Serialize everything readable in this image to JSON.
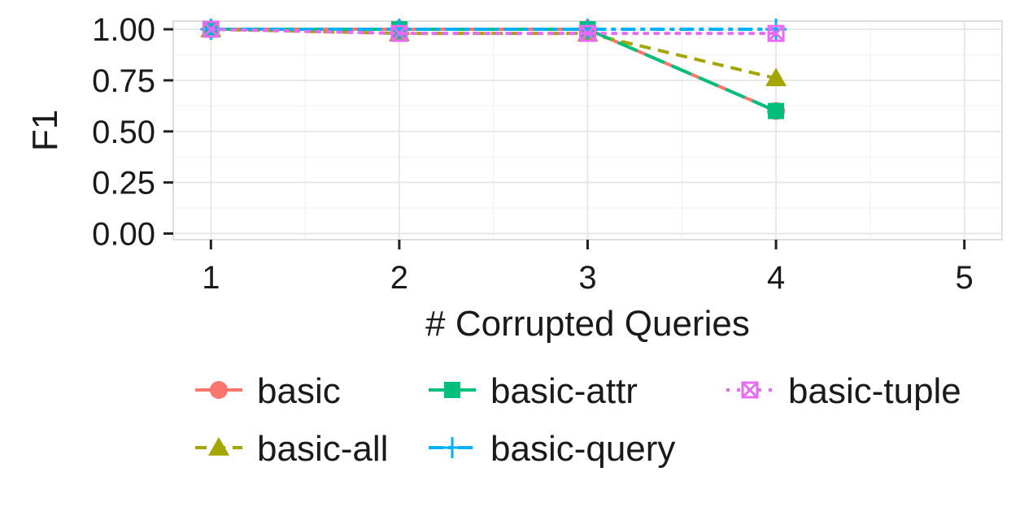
{
  "chart_data": {
    "type": "line",
    "title": "",
    "xlabel": "# Corrupted Queries",
    "ylabel": "F1",
    "x": [
      1,
      2,
      3,
      4
    ],
    "xticks": [
      "1",
      "2",
      "3",
      "4",
      "5"
    ],
    "yticks": [
      "0.00",
      "0.25",
      "0.50",
      "0.75",
      "1.00"
    ],
    "xlim": [
      0.8,
      5.2
    ],
    "ylim": [
      -0.03,
      1.04
    ],
    "grid": true,
    "legend_position": "bottom",
    "series": [
      {
        "name": "basic",
        "values": [
          1.0,
          1.0,
          1.0,
          0.6
        ],
        "color": "#F8766D",
        "dash": "solid",
        "marker": "circle"
      },
      {
        "name": "basic-all",
        "values": [
          1.0,
          0.98,
          0.98,
          0.76
        ],
        "color": "#A3A500",
        "dash": "dashed",
        "marker": "triangle"
      },
      {
        "name": "basic-attr",
        "values": [
          1.0,
          1.0,
          1.0,
          0.6
        ],
        "color": "#00BF7D",
        "dash": "longdash",
        "marker": "square"
      },
      {
        "name": "basic-query",
        "values": [
          1.0,
          1.0,
          1.0,
          1.0
        ],
        "color": "#00B0F6",
        "dash": "twodash",
        "marker": "plus"
      },
      {
        "name": "basic-tuple",
        "values": [
          1.0,
          0.98,
          0.98,
          0.98
        ],
        "color": "#E76BF3",
        "dash": "dotted",
        "marker": "boxx"
      }
    ]
  }
}
